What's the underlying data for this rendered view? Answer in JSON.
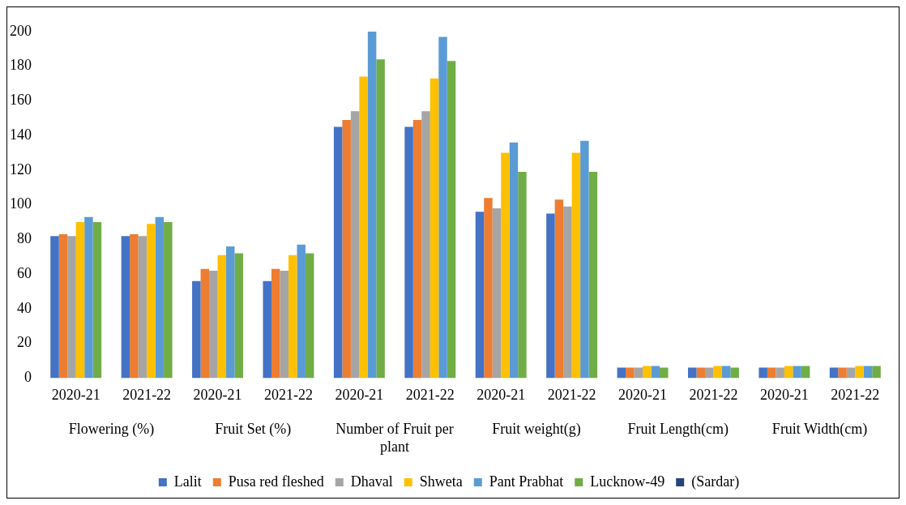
{
  "chart_data": {
    "type": "bar",
    "categories": [
      "2020-21",
      "2021-22",
      "2020-21",
      "2021-22",
      "2020-21",
      "2021-22",
      "2020-21",
      "2021-22",
      "2020-21",
      "2021-22",
      "2020-21",
      "2021-22"
    ],
    "annotations": [
      "Flowering (%)",
      "Fruit Set (%)",
      "Number of Fruit per plant",
      "Fruit weight(g)",
      "Fruit Length(cm)",
      "Fruit Width(cm)"
    ],
    "series": [
      {
        "name": "Lalit",
        "color": "#4472c4",
        "values": [
          82,
          82,
          56,
          56,
          145,
          145,
          96,
          95,
          6,
          6,
          6,
          6
        ]
      },
      {
        "name": "Pusa red fleshed",
        "color": "#ed7d31",
        "values": [
          83,
          83,
          63,
          63,
          149,
          149,
          104,
          103,
          6,
          6,
          6,
          6
        ]
      },
      {
        "name": "Dhaval",
        "color": "#a5a5a5",
        "values": [
          82,
          82,
          62,
          62,
          154,
          154,
          98,
          99,
          6,
          6,
          6,
          6
        ]
      },
      {
        "name": "Shweta",
        "color": "#ffc000",
        "values": [
          90,
          89,
          71,
          71,
          174,
          173,
          130,
          130,
          7,
          7,
          7,
          7
        ]
      },
      {
        "name": "Pant Prabhat",
        "color": "#5b9bd5",
        "values": [
          93,
          93,
          76,
          77,
          200,
          197,
          136,
          137,
          7,
          7,
          7,
          7
        ]
      },
      {
        "name": "Lucknow-49",
        "color": "#70ad47",
        "values": [
          90,
          90,
          72,
          72,
          184,
          183,
          119,
          119,
          6,
          6,
          7,
          7
        ]
      },
      {
        "name": "(Sardar)",
        "color": "#264478",
        "values": [
          null,
          null,
          null,
          null,
          null,
          null,
          null,
          null,
          null,
          null,
          null,
          null
        ]
      }
    ],
    "ylim": [
      0,
      200
    ],
    "yticks": [
      0,
      20,
      40,
      60,
      80,
      100,
      120,
      140,
      160,
      180,
      200
    ],
    "grid": false,
    "legend": "bottom"
  }
}
